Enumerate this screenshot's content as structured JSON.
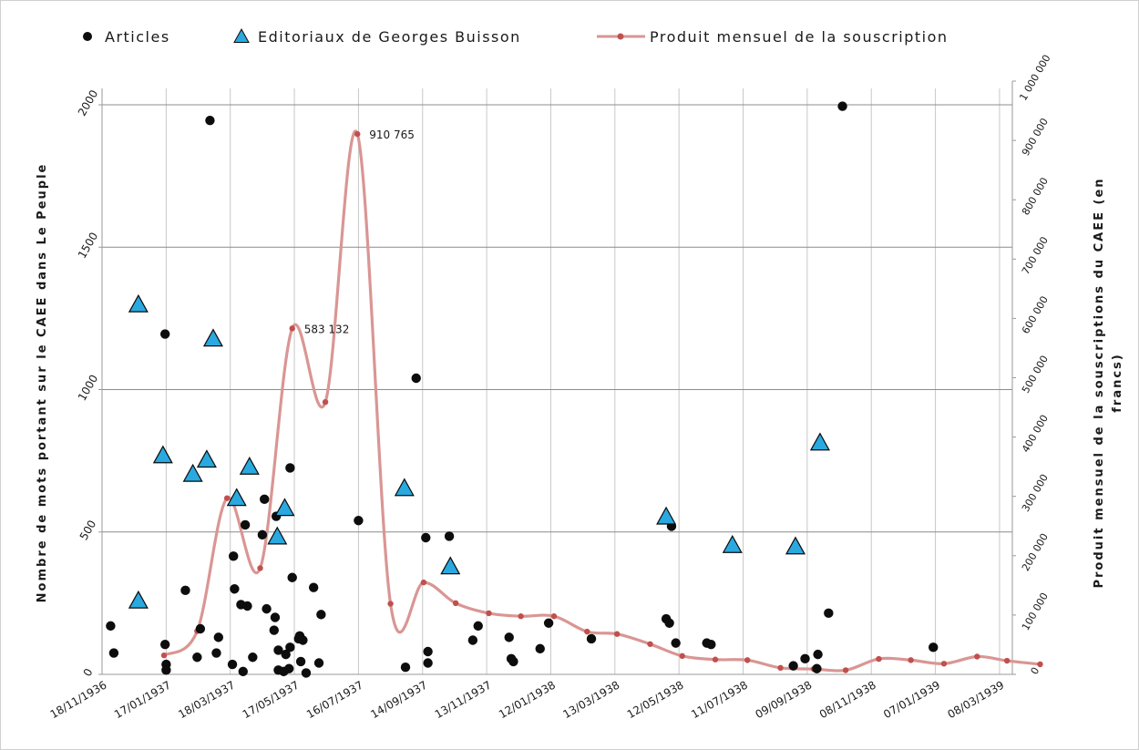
{
  "chart_data": {
    "type": "scatter",
    "legend": {
      "position": "top",
      "entries": [
        "Articles",
        "Editoriaux de Georges Buisson",
        "Produit mensuel de la souscription"
      ]
    },
    "colors": {
      "articles": "#0d0d0d",
      "editoriaux": "#29a9df",
      "souscription": "#d99694",
      "souscription_marker": "#c0504d",
      "grid": "#8c8c8c"
    },
    "xlim": [
      "1936-11-18",
      "1939-03-20"
    ],
    "x_ticks": [
      "18/11/1936",
      "17/01/1937",
      "18/03/1937",
      "17/05/1937",
      "16/07/1937",
      "14/09/1937",
      "13/11/1937",
      "12/01/1938",
      "13/03/1938",
      "12/05/1938",
      "11/07/1938",
      "09/09/1938",
      "08/11/1938",
      "07/01/1939",
      "08/03/1939"
    ],
    "y_left": {
      "label": "Nombre de mots portant sur le CAEE dans Le Peuple",
      "ylim": [
        0,
        2000
      ],
      "ticks": [
        "0",
        "500",
        "1000",
        "1500",
        "2000"
      ],
      "tick_values": [
        0,
        500,
        1000,
        1500,
        2000
      ]
    },
    "y_right": {
      "label": "Produit mensuel de la souscriptions du CAEE (en francs)",
      "ylim": [
        0,
        1000000
      ],
      "ticks": [
        "0",
        "100 000",
        "200 000",
        "300 000",
        "400 000",
        "500 000",
        "600 000",
        "700 000",
        "800 000",
        "900 000",
        "1 000 000"
      ],
      "tick_values": [
        0,
        100000,
        200000,
        300000,
        400000,
        500000,
        600000,
        700000,
        800000,
        900000,
        1000000
      ]
    },
    "grid": {
      "vertical": true,
      "horizontal": true,
      "horizontal_at_left": [
        500,
        1000,
        1500,
        2000
      ]
    },
    "series": [
      {
        "name": "Articles",
        "marker": "circle",
        "axis": "left",
        "points": [
          [
            "1936-11-26",
            170
          ],
          [
            "1936-11-29",
            75
          ],
          [
            "1937-01-16",
            1195
          ],
          [
            "1937-01-16",
            105
          ],
          [
            "1937-01-17",
            35
          ],
          [
            "1937-01-17",
            15
          ],
          [
            "1937-02-04",
            295
          ],
          [
            "1937-02-15",
            60
          ],
          [
            "1937-02-18",
            160
          ],
          [
            "1937-02-27",
            1945
          ],
          [
            "1937-03-07",
            130
          ],
          [
            "1937-03-05",
            75
          ],
          [
            "1937-03-20",
            35
          ],
          [
            "1937-03-21",
            415
          ],
          [
            "1937-03-22",
            300
          ],
          [
            "1937-03-28",
            245
          ],
          [
            "1937-03-30",
            10
          ],
          [
            "1937-04-01",
            525
          ],
          [
            "1937-04-03",
            240
          ],
          [
            "1937-04-08",
            60
          ],
          [
            "1937-04-17",
            490
          ],
          [
            "1937-04-19",
            615
          ],
          [
            "1937-04-21",
            230
          ],
          [
            "1937-04-28",
            155
          ],
          [
            "1937-04-29",
            200
          ],
          [
            "1937-04-30",
            555
          ],
          [
            "1937-05-02",
            85
          ],
          [
            "1937-05-02",
            15
          ],
          [
            "1937-05-07",
            10
          ],
          [
            "1937-05-09",
            70
          ],
          [
            "1937-05-12",
            20
          ],
          [
            "1937-05-13",
            95
          ],
          [
            "1937-05-13",
            725
          ],
          [
            "1937-05-15",
            340
          ],
          [
            "1937-05-21",
            125
          ],
          [
            "1937-05-22",
            135
          ],
          [
            "1937-05-23",
            45
          ],
          [
            "1937-05-25",
            120
          ],
          [
            "1937-05-28",
            5
          ],
          [
            "1937-06-04",
            305
          ],
          [
            "1937-06-09",
            40
          ],
          [
            "1937-06-11",
            210
          ],
          [
            "1937-07-16",
            540
          ],
          [
            "1937-08-29",
            25
          ],
          [
            "1937-09-08",
            1040
          ],
          [
            "1937-09-17",
            480
          ],
          [
            "1937-09-19",
            80
          ],
          [
            "1937-09-19",
            40
          ],
          [
            "1937-10-09",
            485
          ],
          [
            "1937-10-31",
            120
          ],
          [
            "1937-11-05",
            170
          ],
          [
            "1937-12-04",
            130
          ],
          [
            "1937-12-06",
            55
          ],
          [
            "1937-12-08",
            45
          ],
          [
            "1938-01-02",
            90
          ],
          [
            "1938-01-10",
            180
          ],
          [
            "1938-02-19",
            125
          ],
          [
            "1938-04-30",
            195
          ],
          [
            "1938-05-03",
            180
          ],
          [
            "1938-05-05",
            520
          ],
          [
            "1938-05-09",
            110
          ],
          [
            "1938-06-07",
            110
          ],
          [
            "1938-06-11",
            105
          ],
          [
            "1938-08-27",
            30
          ],
          [
            "1938-09-07",
            55
          ],
          [
            "1938-09-19",
            70
          ],
          [
            "1938-09-18",
            20
          ],
          [
            "1938-09-29",
            215
          ],
          [
            "1938-10-12",
            1995
          ],
          [
            "1939-01-05",
            95
          ]
        ]
      },
      {
        "name": "Editoriaux de Georges Buisson",
        "marker": "triangle",
        "axis": "left",
        "points": [
          [
            "1936-12-22",
            1295
          ],
          [
            "1936-12-22",
            255
          ],
          [
            "1937-01-14",
            765
          ],
          [
            "1937-02-11",
            700
          ],
          [
            "1937-02-24",
            750
          ],
          [
            "1937-03-02",
            1175
          ],
          [
            "1937-03-24",
            615
          ],
          [
            "1937-04-05",
            725
          ],
          [
            "1937-05-01",
            480
          ],
          [
            "1937-05-08",
            580
          ],
          [
            "1937-08-28",
            650
          ],
          [
            "1937-10-10",
            375
          ],
          [
            "1938-04-30",
            550
          ],
          [
            "1938-07-01",
            450
          ],
          [
            "1938-08-29",
            445
          ],
          [
            "1938-09-21",
            810
          ]
        ]
      },
      {
        "name": "Produit mensuel de la souscription",
        "marker": "line+dot",
        "axis": "right",
        "points": [
          [
            "1937-01-15",
            32000
          ],
          [
            "1937-02-15",
            73000
          ],
          [
            "1937-03-15",
            297000
          ],
          [
            "1937-04-15",
            179000
          ],
          [
            "1937-05-15",
            583132
          ],
          [
            "1937-06-15",
            459000
          ],
          [
            "1937-07-15",
            910765
          ],
          [
            "1937-08-15",
            119000
          ],
          [
            "1937-09-15",
            155000
          ],
          [
            "1937-10-15",
            120000
          ],
          [
            "1937-11-15",
            103000
          ],
          [
            "1937-12-15",
            98000
          ],
          [
            "1938-01-15",
            98000
          ],
          [
            "1938-02-15",
            72000
          ],
          [
            "1938-03-15",
            68000
          ],
          [
            "1938-04-15",
            51000
          ],
          [
            "1938-05-15",
            31000
          ],
          [
            "1938-06-15",
            25000
          ],
          [
            "1938-07-15",
            24000
          ],
          [
            "1938-08-15",
            11000
          ],
          [
            "1938-09-15",
            9000
          ],
          [
            "1938-10-15",
            7000
          ],
          [
            "1938-11-15",
            26000
          ],
          [
            "1938-12-15",
            24000
          ],
          [
            "1939-01-15",
            18000
          ],
          [
            "1939-02-15",
            30000
          ],
          [
            "1939-03-15",
            23000
          ],
          [
            "1939-04-15",
            17000
          ]
        ]
      }
    ],
    "annotations": [
      {
        "x": "1937-07-15",
        "y": 910765,
        "text": "910 765"
      },
      {
        "x": "1937-05-15",
        "y": 583132,
        "text": "583 132"
      }
    ]
  }
}
